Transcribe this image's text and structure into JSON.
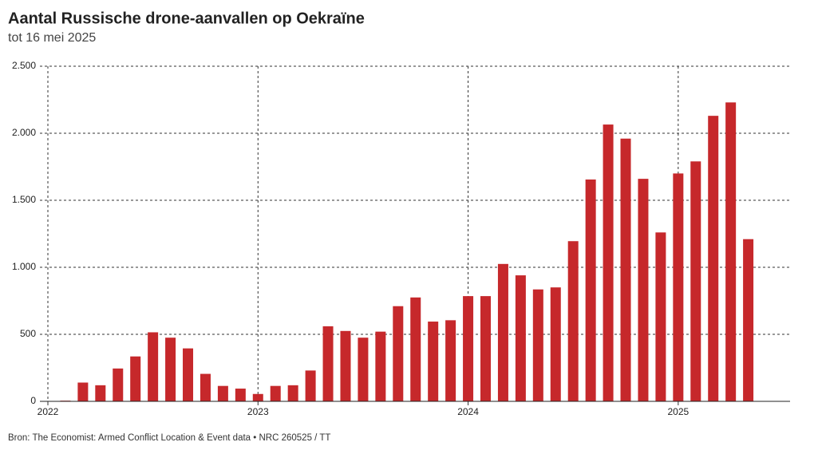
{
  "chart_data": {
    "type": "bar",
    "title": "Aantal Russische drone-aanvallen op Oekraïne",
    "subtitle": "tot 16 mei 2025",
    "source": "Bron: The Economist: Armed Conflict Location & Event data • NRC 260525 / TT",
    "categories": [
      "2022",
      null,
      null,
      null,
      null,
      null,
      null,
      null,
      null,
      null,
      null,
      null,
      "2023",
      null,
      null,
      null,
      null,
      null,
      null,
      null,
      null,
      null,
      null,
      null,
      "2024",
      null,
      null,
      null,
      null,
      null,
      null,
      null,
      null,
      null,
      null,
      null,
      "2025",
      null,
      null,
      null,
      null
    ],
    "values": [
      null,
      5,
      140,
      120,
      245,
      335,
      515,
      475,
      395,
      205,
      115,
      95,
      55,
      115,
      120,
      230,
      560,
      525,
      475,
      520,
      710,
      775,
      595,
      605,
      785,
      785,
      1025,
      940,
      835,
      850,
      1195,
      1655,
      2065,
      1960,
      1660,
      1260,
      1700,
      1790,
      2130,
      2230,
      1210
    ],
    "color": "#c6282b",
    "ylim": [
      0,
      2500
    ],
    "yticks": [
      0,
      {
        "value": 500,
        "label": "500"
      },
      {
        "value": 1000,
        "label": "1.000"
      },
      {
        "value": 1500,
        "label": "1.500"
      },
      {
        "value": 2000,
        "label": "2.000"
      },
      {
        "value": 2500,
        "label": "2.500"
      }
    ],
    "grid": true
  }
}
